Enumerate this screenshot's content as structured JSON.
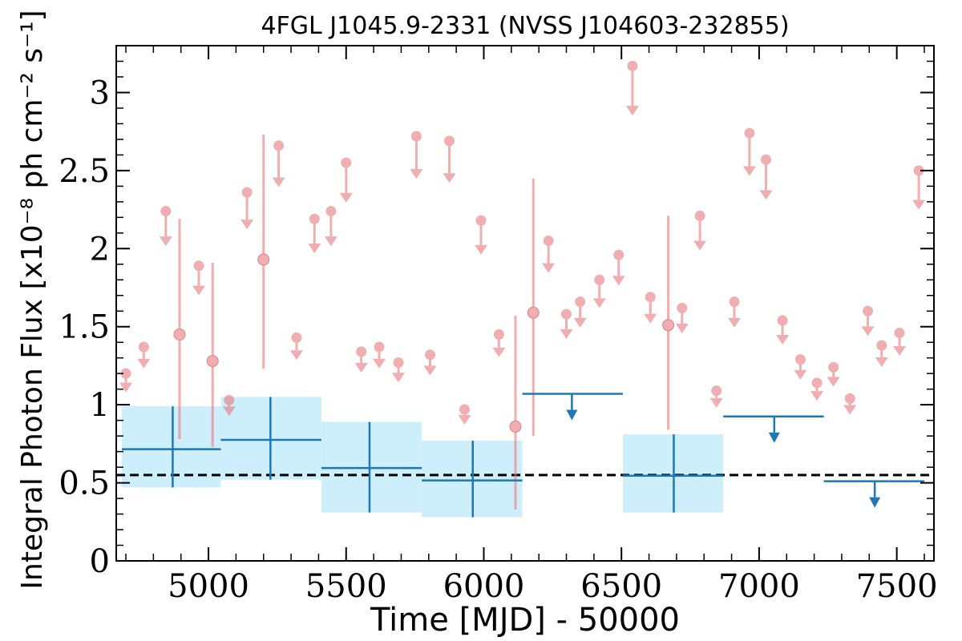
{
  "chart_data": {
    "type": "scatter",
    "title": "4FGL J1045.9-2331 (NVSS J104603-232855)",
    "xlabel": "Time [MJD] - 50000",
    "ylabel": "Integral Photon Flux [x10⁻⁸ ph cm⁻² s⁻¹]",
    "xlim": [
      4665,
      7635
    ],
    "ylim": [
      0,
      3.3
    ],
    "xticks": [
      5000,
      5500,
      6000,
      6500,
      7000,
      7500
    ],
    "xtick_labels": [
      "5000",
      "5500",
      "6000",
      "6500",
      "7000",
      "7500"
    ],
    "yticks": [
      0,
      0.5,
      1,
      1.5,
      2,
      2.5,
      3
    ],
    "ytick_labels": [
      "0",
      "0.5",
      "1",
      "1.5",
      "2",
      "2.5",
      "3"
    ],
    "reference_line": 0.55,
    "colors": {
      "short_bins": "#e87d80",
      "long_bins": "#1f77b4",
      "band_fill": "#cdeefb",
      "reference": "#000000"
    },
    "short_bin_upper_limits": [
      [
        4700,
        1.2
      ],
      [
        4765,
        1.37
      ],
      [
        4845,
        2.24
      ],
      [
        4965,
        1.89
      ],
      [
        5075,
        1.03
      ],
      [
        5140,
        2.36
      ],
      [
        5255,
        2.66
      ],
      [
        5320,
        1.43
      ],
      [
        5385,
        2.19
      ],
      [
        5445,
        2.24
      ],
      [
        5500,
        2.55
      ],
      [
        5555,
        1.34
      ],
      [
        5620,
        1.37
      ],
      [
        5690,
        1.27
      ],
      [
        5755,
        2.72
      ],
      [
        5805,
        1.32
      ],
      [
        5875,
        2.69
      ],
      [
        5930,
        0.97
      ],
      [
        5990,
        2.18
      ],
      [
        6055,
        1.45
      ],
      [
        6235,
        2.05
      ],
      [
        6300,
        1.58
      ],
      [
        6350,
        1.66
      ],
      [
        6420,
        1.8
      ],
      [
        6490,
        1.96
      ],
      [
        6540,
        3.17
      ],
      [
        6605,
        1.69
      ],
      [
        6720,
        1.62
      ],
      [
        6785,
        2.21
      ],
      [
        6845,
        1.09
      ],
      [
        6910,
        1.66
      ],
      [
        6965,
        2.74
      ],
      [
        7025,
        2.57
      ],
      [
        7085,
        1.54
      ],
      [
        7150,
        1.29
      ],
      [
        7210,
        1.14
      ],
      [
        7270,
        1.24
      ],
      [
        7330,
        1.04
      ],
      [
        7395,
        1.6
      ],
      [
        7445,
        1.38
      ],
      [
        7510,
        1.46
      ],
      [
        7580,
        2.5
      ]
    ],
    "short_bin_detections": [
      [
        4895,
        1.45,
        0.78,
        2.19
      ],
      [
        5015,
        1.28,
        0.73,
        1.91
      ],
      [
        5200,
        1.93,
        1.23,
        2.73
      ],
      [
        6115,
        0.86,
        0.33,
        1.57
      ],
      [
        6180,
        1.59,
        0.8,
        2.45
      ],
      [
        6670,
        1.51,
        0.84,
        2.21
      ]
    ],
    "long_bin_detections": [
      [
        4685,
        5045,
        4870,
        0.715,
        0.47,
        0.99
      ],
      [
        5045,
        5410,
        5225,
        0.775,
        0.52,
        1.05
      ],
      [
        5410,
        5775,
        5585,
        0.595,
        0.31,
        0.89
      ],
      [
        5775,
        6140,
        5960,
        0.515,
        0.28,
        0.77
      ],
      [
        6505,
        6870,
        6690,
        0.545,
        0.31,
        0.81
      ]
    ],
    "long_bin_upper_limits": [
      [
        6140,
        6505,
        6320,
        1.07
      ],
      [
        6870,
        7235,
        7055,
        0.925
      ],
      [
        7235,
        7600,
        7420,
        0.51
      ]
    ]
  }
}
